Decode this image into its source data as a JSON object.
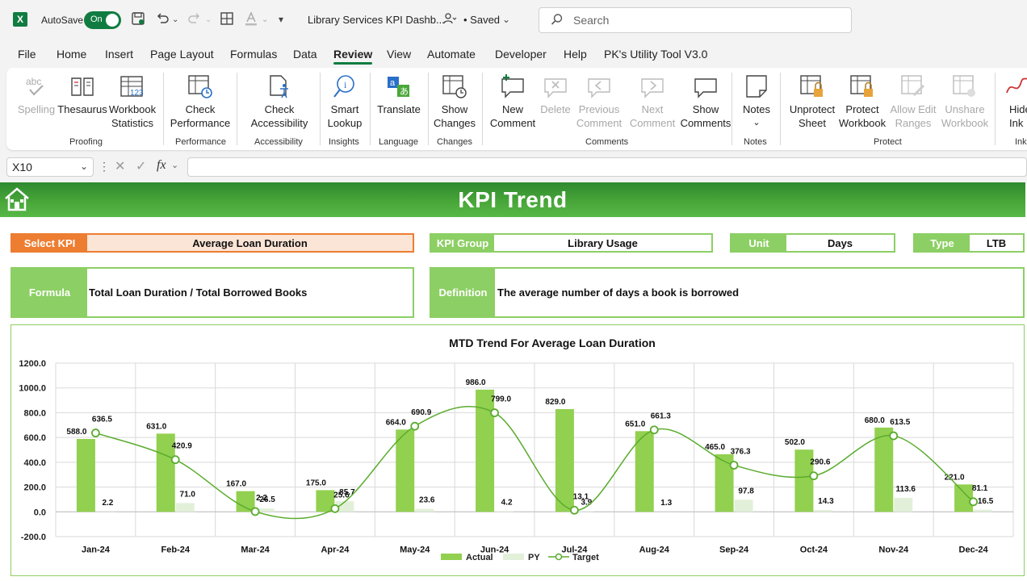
{
  "titlebar": {
    "autosave_label": "AutoSave",
    "autosave_state": "On",
    "doc_title": "Library Services KPI Dashb...",
    "save_state": "• Saved",
    "search_placeholder": "Search"
  },
  "menu": {
    "tabs": [
      "File",
      "Home",
      "Insert",
      "Page Layout",
      "Formulas",
      "Data",
      "Review",
      "View",
      "Automate",
      "Developer",
      "Help",
      "PK's Utility Tool V3.0"
    ],
    "active": "Review"
  },
  "ribbon": {
    "groups": [
      "Proofing",
      "Performance",
      "Accessibility",
      "Insights",
      "Language",
      "Changes",
      "Comments",
      "Notes",
      "Protect",
      "Ink"
    ],
    "buttons": {
      "spelling": "Spelling",
      "thesaurus": "Thesaurus",
      "workbook_stats_1": "Workbook",
      "workbook_stats_2": "Statistics",
      "check_perf_1": "Check",
      "check_perf_2": "Performance",
      "check_access_1": "Check",
      "check_access_2": "Accessibility",
      "smart_lookup_1": "Smart",
      "smart_lookup_2": "Lookup",
      "translate": "Translate",
      "show_changes_1": "Show",
      "show_changes_2": "Changes",
      "new_comment_1": "New",
      "new_comment_2": "Comment",
      "delete": "Delete",
      "prev_comment_1": "Previous",
      "prev_comment_2": "Comment",
      "next_comment_1": "Next",
      "next_comment_2": "Comment",
      "show_comments_1": "Show",
      "show_comments_2": "Comments",
      "notes": "Notes",
      "unprotect_1": "Unprotect",
      "unprotect_2": "Sheet",
      "protect_wb_1": "Protect",
      "protect_wb_2": "Workbook",
      "allow_edit_1": "Allow Edit",
      "allow_edit_2": "Ranges",
      "unshare_1": "Unshare",
      "unshare_2": "Workbook",
      "hide_ink_1": "Hide",
      "hide_ink_2": "Ink"
    }
  },
  "formula_bar": {
    "name_box": "X10",
    "fx": "fx",
    "formula": ""
  },
  "dashboard": {
    "title": "KPI Trend",
    "select_kpi_label": "Select KPI",
    "select_kpi_value": "Average Loan Duration",
    "kpi_group_label": "KPI Group",
    "kpi_group_value": "Library Usage",
    "unit_label": "Unit",
    "unit_value": "Days",
    "type_label": "Type",
    "type_value": "LTB",
    "formula_label": "Formula",
    "formula_value": "Total Loan Duration / Total Borrowed Books",
    "definition_label": "Definition",
    "definition_value": "The average number of days a book is borrowed"
  },
  "colors": {
    "accent_green": "#8ccf64",
    "orange": "#ed7d31",
    "actual_bar": "#92d050",
    "py_bar": "#e2f0d9",
    "target_line": "#5aac2e"
  },
  "chart_data": {
    "type": "bar",
    "title": "MTD Trend For Average Loan Duration",
    "categories": [
      "Jan-24",
      "Feb-24",
      "Mar-24",
      "Apr-24",
      "May-24",
      "Jun-24",
      "Jul-24",
      "Aug-24",
      "Sep-24",
      "Oct-24",
      "Nov-24",
      "Dec-24"
    ],
    "series": [
      {
        "name": "Actual",
        "type": "bar",
        "values": [
          588.0,
          631.0,
          167.0,
          175.0,
          664.0,
          986.0,
          829.0,
          651.0,
          465.0,
          502.0,
          680.0,
          221.0
        ],
        "labels": [
          "588.0",
          "631.0",
          "167.0",
          "175.0",
          "664.0",
          "986.0",
          "829.0",
          "651.0",
          "465.0",
          "502.0",
          "680.0",
          "221.0"
        ]
      },
      {
        "name": "PY",
        "type": "bar",
        "values": [
          2.2,
          71.0,
          26.5,
          85.7,
          23.6,
          4.2,
          3.9,
          1.3,
          97.8,
          14.3,
          113.6,
          16.5
        ],
        "labels": [
          "2.2",
          "71.0",
          "26.5",
          "85.7",
          "23.6",
          "4.2",
          "3.9",
          "1.3",
          "97.8",
          "14.3",
          "113.6",
          "16.5"
        ]
      },
      {
        "name": "Target",
        "type": "line",
        "values": [
          636.5,
          420.9,
          2.2,
          25.6,
          690.9,
          799.0,
          13.1,
          661.3,
          376.3,
          290.6,
          613.5,
          81.1
        ],
        "labels": [
          "636.5",
          "420.9",
          "2.2",
          "25.6",
          "690.9",
          "799.0",
          "13.1",
          "661.3",
          "376.3",
          "290.6",
          "613.5",
          "81.1"
        ]
      }
    ],
    "ylim": [
      -200,
      1200
    ],
    "yticks": [
      "-200.0",
      "0.0",
      "200.0",
      "400.0",
      "600.0",
      "800.0",
      "1000.0",
      "1200.0"
    ],
    "grid": true,
    "legend": "bottom"
  }
}
